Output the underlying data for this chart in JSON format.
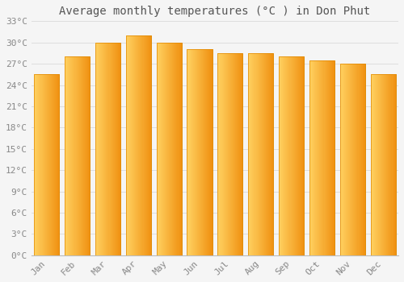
{
  "title": "Average monthly temperatures (°C ) in Don Phut",
  "months": [
    "Jan",
    "Feb",
    "Mar",
    "Apr",
    "May",
    "Jun",
    "Jul",
    "Aug",
    "Sep",
    "Oct",
    "Nov",
    "Dec"
  ],
  "values": [
    25.5,
    28.0,
    30.0,
    31.0,
    30.0,
    29.0,
    28.5,
    28.5,
    28.0,
    27.5,
    27.0,
    25.5
  ],
  "bar_color_left": "#FFD060",
  "bar_color_right": "#F0900A",
  "bar_edge_color": "#E08800",
  "ylim": [
    0,
    33
  ],
  "yticks": [
    0,
    3,
    6,
    9,
    12,
    15,
    18,
    21,
    24,
    27,
    30,
    33
  ],
  "background_color": "#f5f5f5",
  "grid_color": "#dddddd",
  "title_fontsize": 10,
  "tick_fontsize": 8,
  "font_family": "monospace"
}
